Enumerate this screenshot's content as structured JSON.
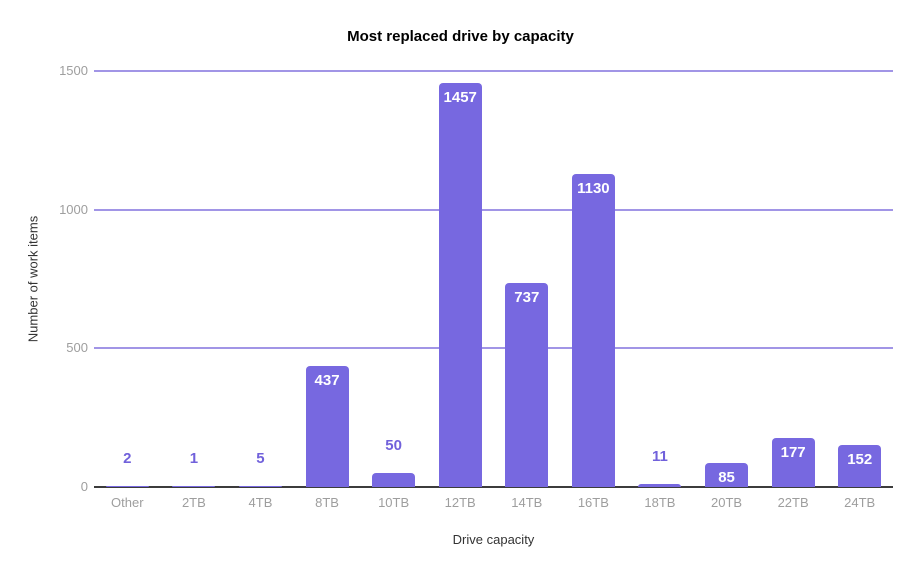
{
  "chart_data": {
    "type": "bar",
    "title": "Most replaced drive by capacity",
    "xlabel": "Drive capacity",
    "ylabel": "Number of work items",
    "categories": [
      "Other",
      "2TB",
      "4TB",
      "8TB",
      "10TB",
      "12TB",
      "14TB",
      "16TB",
      "18TB",
      "20TB",
      "22TB",
      "24TB"
    ],
    "values": [
      2,
      1,
      5,
      437,
      50,
      1457,
      737,
      1130,
      11,
      85,
      177,
      152
    ],
    "yticks": [
      0,
      500,
      1000,
      1500
    ],
    "ylim": [
      0,
      1500
    ],
    "grid": true,
    "legend": "none",
    "value_labels": "inside-top when bar is tall, above bar when short",
    "colors": {
      "bar": "#7768E0",
      "gridline": "#A195E6",
      "baseline": "#3C3C3C",
      "tick_label": "#9E9E9E",
      "title": "#000000",
      "axis_title": "#333333",
      "value_inside": "#FFFFFF",
      "value_outside": "#7161DB",
      "background": "#FFFFFF"
    }
  }
}
